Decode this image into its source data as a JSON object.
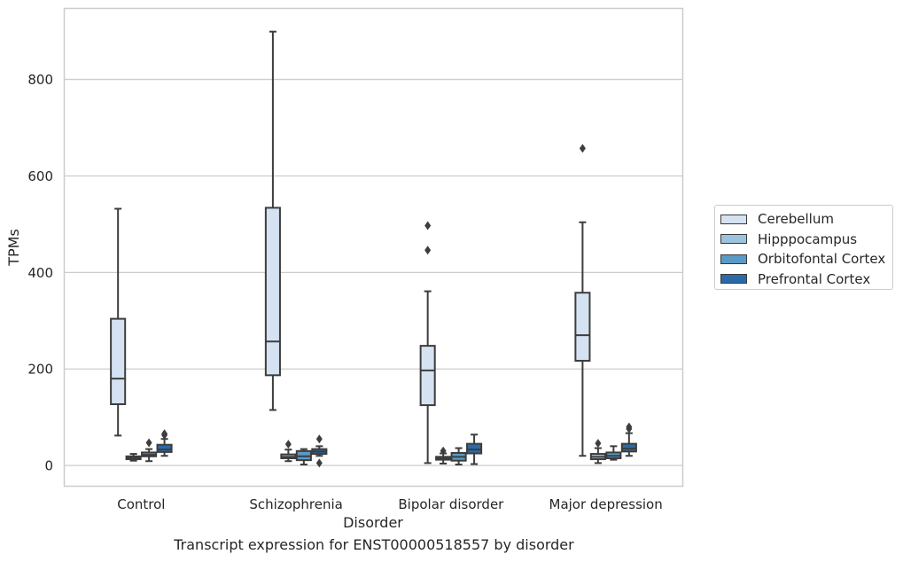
{
  "chart_data": {
    "type": "box",
    "caption": "Transcript expression for ENST00000518557 by disorder",
    "xlabel": "Disorder",
    "ylabel": "TPMs",
    "ylim": [
      -42,
      948
    ],
    "yticks": [
      0,
      200,
      400,
      600,
      800
    ],
    "grid": "horizontal",
    "legend_position": "right",
    "categories": [
      "Control",
      "Schizophrenia",
      "Bipolar disorder",
      "Major depression"
    ],
    "series": [
      {
        "name": "Cerebellum",
        "color": "#d4e2f1",
        "boxes": [
          {
            "whisker_low": 62,
            "q1": 127,
            "median": 180,
            "q3": 304,
            "whisker_high": 532,
            "outliers": []
          },
          {
            "whisker_low": 115,
            "q1": 187,
            "median": 257,
            "q3": 534,
            "whisker_high": 899,
            "outliers": []
          },
          {
            "whisker_low": 5,
            "q1": 125,
            "median": 197,
            "q3": 248,
            "whisker_high": 361,
            "outliers": [
              446,
              497
            ]
          },
          {
            "whisker_low": 20,
            "q1": 217,
            "median": 270,
            "q3": 358,
            "whisker_high": 504,
            "outliers": [
              657
            ]
          }
        ]
      },
      {
        "name": "Hipppocampus",
        "color": "#9cc3dc",
        "boxes": [
          {
            "whisker_low": 10,
            "q1": 13,
            "median": 16,
            "q3": 19,
            "whisker_high": 24,
            "outliers": []
          },
          {
            "whisker_low": 9,
            "q1": 15,
            "median": 18,
            "q3": 23,
            "whisker_high": 33,
            "outliers": [
              44
            ]
          },
          {
            "whisker_low": 4,
            "q1": 12,
            "median": 15,
            "q3": 18,
            "whisker_high": 25,
            "outliers": [
              30
            ]
          },
          {
            "whisker_low": 5,
            "q1": 13,
            "median": 18,
            "q3": 24,
            "whisker_high": 36,
            "outliers": [
              46
            ]
          }
        ]
      },
      {
        "name": "Orbitofontal Cortex",
        "color": "#5a9ac6",
        "boxes": [
          {
            "whisker_low": 9,
            "q1": 19,
            "median": 22,
            "q3": 27,
            "whisker_high": 34,
            "outliers": [
              47
            ]
          },
          {
            "whisker_low": 2,
            "q1": 11,
            "median": 19,
            "q3": 30,
            "whisker_high": 34,
            "outliers": []
          },
          {
            "whisker_low": 2,
            "q1": 10,
            "median": 18,
            "q3": 26,
            "whisker_high": 36,
            "outliers": []
          },
          {
            "whisker_low": 12,
            "q1": 15,
            "median": 20,
            "q3": 27,
            "whisker_high": 40,
            "outliers": []
          }
        ]
      },
      {
        "name": "Prefrontal Cortex",
        "color": "#2a6aa8",
        "boxes": [
          {
            "whisker_low": 20,
            "q1": 28,
            "median": 33,
            "q3": 43,
            "whisker_high": 55,
            "outliers": [
              63,
              66
            ]
          },
          {
            "whisker_low": 20,
            "q1": 24,
            "median": 29,
            "q3": 34,
            "whisker_high": 40,
            "outliers": [
              55,
              5
            ]
          },
          {
            "whisker_low": 3,
            "q1": 25,
            "median": 33,
            "q3": 45,
            "whisker_high": 64,
            "outliers": []
          },
          {
            "whisker_low": 20,
            "q1": 29,
            "median": 35,
            "q3": 45,
            "whisker_high": 67,
            "outliers": [
              76,
              80
            ]
          }
        ]
      }
    ]
  }
}
